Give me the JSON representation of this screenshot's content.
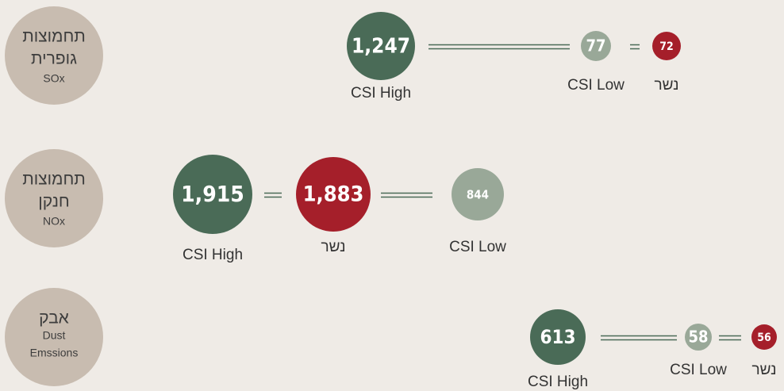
{
  "rows": [
    {
      "label": [
        "תחמוצות",
        "גופרית"
      ],
      "code": "SOx",
      "items": [
        {
          "value": "1,247",
          "name": "CSI High"
        },
        {
          "value": "77",
          "name": "CSI Low"
        },
        {
          "value": "72",
          "name": "נשר"
        }
      ]
    },
    {
      "label": [
        "תחמוצות",
        "חנקן"
      ],
      "code": "NOx",
      "items": [
        {
          "value": "1,915",
          "name": "CSI High"
        },
        {
          "value": "1,883",
          "name": "נשר"
        },
        {
          "value": "844",
          "name": "CSI Low"
        }
      ]
    },
    {
      "label": [
        "אבק",
        "Dust"
      ],
      "code": "Emssions",
      "items": [
        {
          "value": "613",
          "name": "CSI High"
        },
        {
          "value": "58",
          "name": "CSI Low"
        },
        {
          "value": "56",
          "name": "נשר"
        }
      ]
    }
  ]
}
